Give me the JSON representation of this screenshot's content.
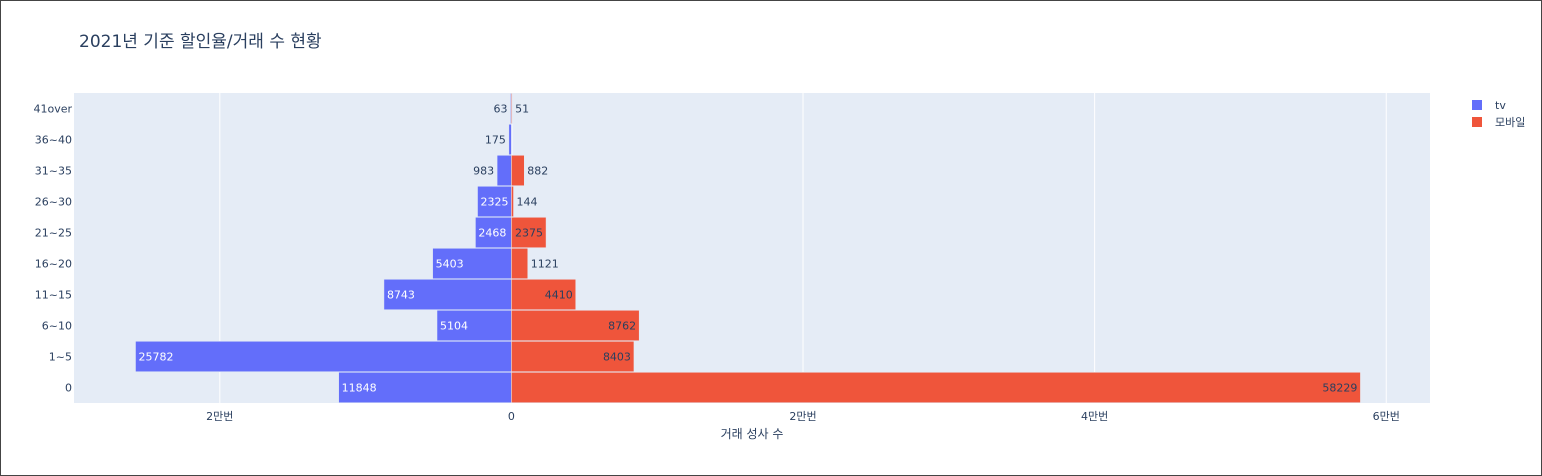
{
  "chart_data": {
    "type": "bar",
    "orientation": "horizontal",
    "barmode": "relative",
    "title": "2021년 기준 할인율/거래 수 현황",
    "xlabel": "거래 성사 수",
    "ylabel": "",
    "categories": [
      "0",
      "1~5",
      "6~10",
      "11~15",
      "16~20",
      "21~25",
      "26~30",
      "31~35",
      "36~40",
      "41over"
    ],
    "series": [
      {
        "name": "tv",
        "color": "#636efa",
        "values": [
          -11848,
          -25782,
          -5104,
          -8743,
          -5403,
          -2468,
          -2325,
          -983,
          -175,
          -63
        ],
        "labels": [
          "11848",
          "25782",
          "5104",
          "8743",
          "5403",
          "2468",
          "2325",
          "983",
          "175",
          "63"
        ]
      },
      {
        "name": "모바일",
        "color": "#ef553b",
        "values": [
          58229,
          8403,
          8762,
          4410,
          1121,
          2375,
          144,
          882,
          0,
          51
        ],
        "labels": [
          "58229",
          "8403",
          "8762",
          "4410",
          "1121",
          "2375",
          "144",
          "882",
          "",
          "51"
        ]
      }
    ],
    "xlim": [
      -30000,
      63000
    ],
    "x_ticks": [
      {
        "value": -20000,
        "label": "2만번"
      },
      {
        "value": 0,
        "label": "0"
      },
      {
        "value": 20000,
        "label": "2만번"
      },
      {
        "value": 40000,
        "label": "4만번"
      },
      {
        "value": 60000,
        "label": "6만번"
      }
    ],
    "grid": true,
    "legend_position": "top-right",
    "plot_background": "#e5ecf6"
  }
}
